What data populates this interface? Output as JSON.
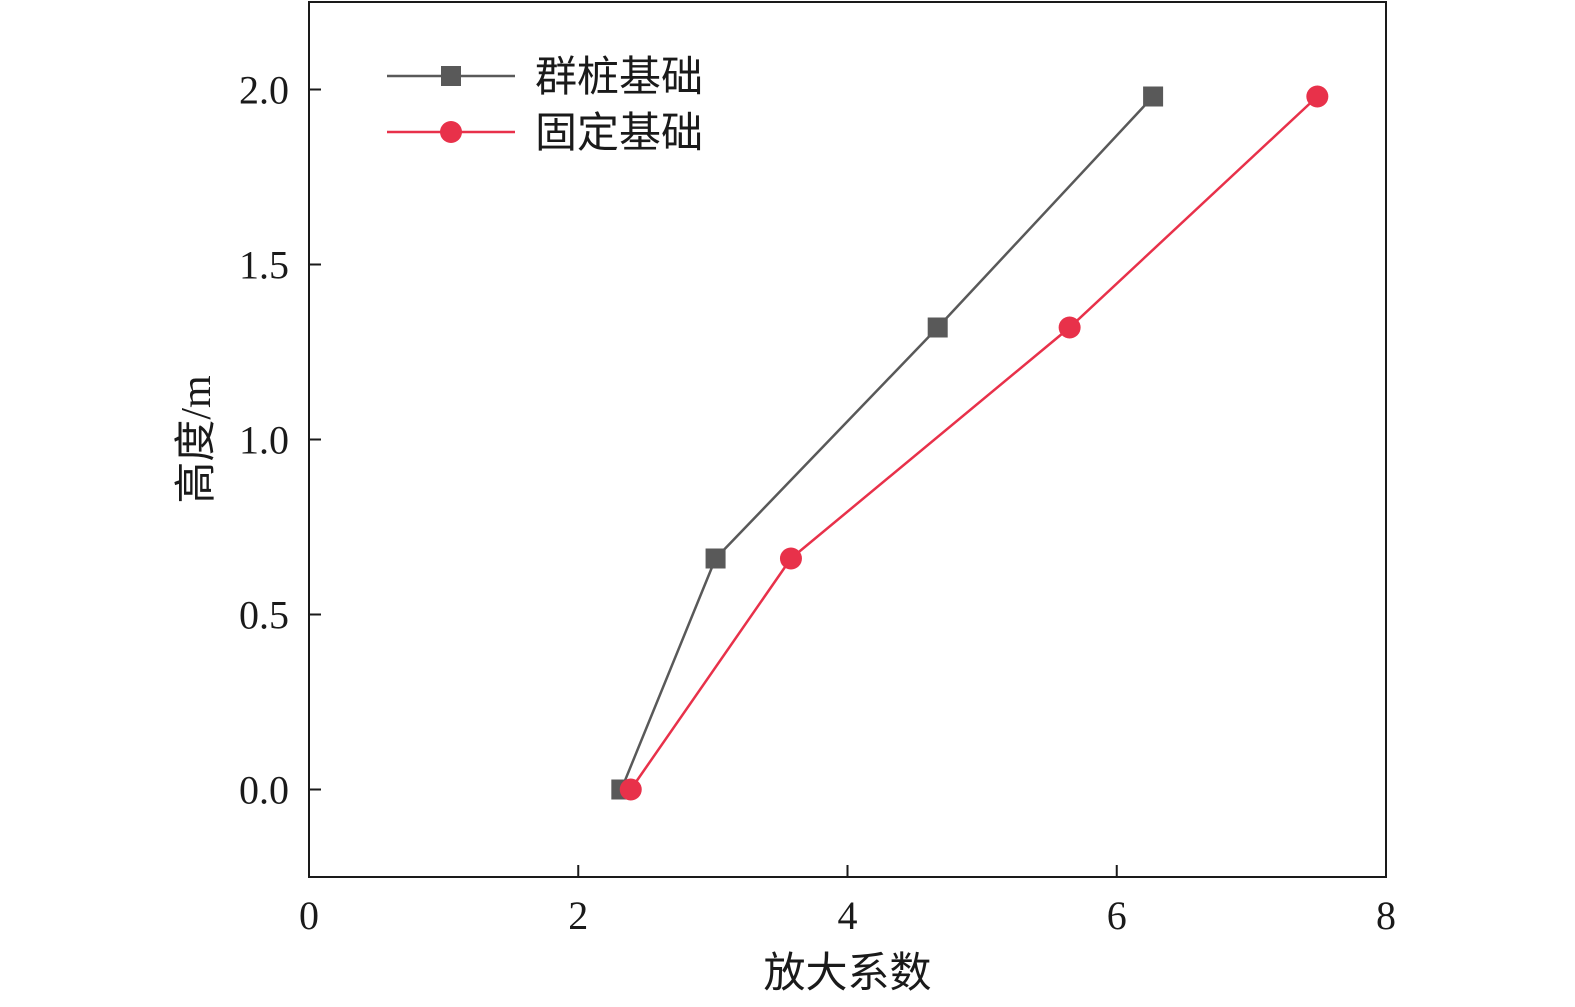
{
  "chart_data": {
    "type": "line",
    "title": "",
    "xlabel": "放大系数",
    "ylabel": "高度/m",
    "xlim": [
      0,
      8
    ],
    "ylim": [
      -0.25,
      2.25
    ],
    "xticks": [
      0,
      2,
      4,
      6,
      8
    ],
    "xtick_labels": [
      "0",
      "2",
      "4",
      "6",
      "8"
    ],
    "yticks": [
      0.0,
      0.5,
      1.0,
      1.5,
      2.0
    ],
    "ytick_labels": [
      "0.0",
      "0.5",
      "1.0",
      "1.5",
      "2.0"
    ],
    "grid": false,
    "legend_position": "top-left",
    "series": [
      {
        "name": "群桩基础",
        "color": "#595959",
        "marker": "square",
        "points": [
          {
            "x": 2.32,
            "y": 0.0
          },
          {
            "x": 3.02,
            "y": 0.66
          },
          {
            "x": 4.67,
            "y": 1.32
          },
          {
            "x": 6.27,
            "y": 1.98
          }
        ]
      },
      {
        "name": "固定基础",
        "color": "#e8314a",
        "marker": "circle",
        "points": [
          {
            "x": 2.39,
            "y": 0.0
          },
          {
            "x": 3.58,
            "y": 0.66
          },
          {
            "x": 5.65,
            "y": 1.32
          },
          {
            "x": 7.49,
            "y": 1.98
          }
        ]
      }
    ]
  }
}
